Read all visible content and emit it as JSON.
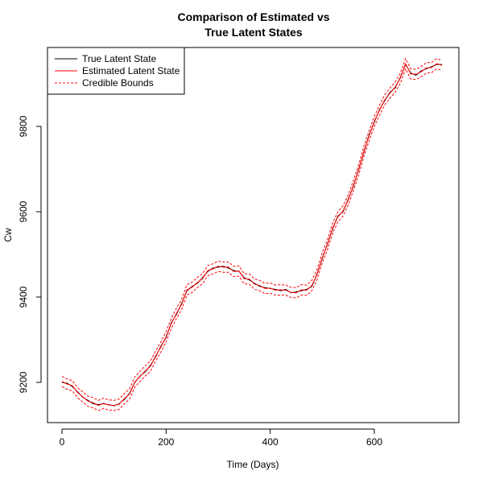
{
  "chart_data": {
    "type": "line",
    "title": [
      "Comparison of Estimated vs",
      "True Latent States"
    ],
    "xlabel": "Time (Days)",
    "ylabel": "Cw",
    "xlim": [
      0,
      730
    ],
    "ylim": [
      9120,
      9970
    ],
    "x_ticks": [
      0,
      200,
      400,
      600
    ],
    "y_ticks": [
      9200,
      9400,
      9600,
      9800
    ],
    "grid": false,
    "legend_position": "top-left",
    "bound_offset": 12,
    "series": [
      {
        "name": "True Latent State",
        "color": "#000000",
        "style": "solid",
        "x": [
          0,
          10,
          20,
          30,
          40,
          50,
          60,
          70,
          80,
          90,
          100,
          110,
          120,
          130,
          140,
          150,
          160,
          170,
          180,
          190,
          200,
          210,
          220,
          230,
          240,
          250,
          260,
          270,
          280,
          290,
          300,
          310,
          320,
          330,
          340,
          350,
          360,
          370,
          380,
          390,
          400,
          410,
          420,
          430,
          440,
          450,
          460,
          470,
          480,
          490,
          500,
          510,
          520,
          530,
          540,
          550,
          560,
          570,
          580,
          590,
          600,
          610,
          620,
          630,
          640,
          650,
          660,
          670,
          680,
          690,
          700,
          710,
          720,
          730
        ],
        "values": [
          9200,
          9198,
          9190,
          9178,
          9165,
          9158,
          9150,
          9148,
          9150,
          9148,
          9145,
          9150,
          9160,
          9175,
          9200,
          9215,
          9225,
          9240,
          9260,
          9285,
          9305,
          9340,
          9360,
          9385,
          9415,
          9425,
          9432,
          9445,
          9460,
          9468,
          9470,
          9472,
          9468,
          9462,
          9460,
          9445,
          9440,
          9432,
          9425,
          9422,
          9420,
          9418,
          9415,
          9418,
          9410,
          9412,
          9415,
          9418,
          9425,
          9455,
          9490,
          9525,
          9560,
          9590,
          9600,
          9630,
          9660,
          9700,
          9740,
          9780,
          9810,
          9840,
          9860,
          9880,
          9890,
          9915,
          9945,
          9925,
          9920,
          9930,
          9935,
          9940,
          9945,
          9945
        ]
      },
      {
        "name": "Estimated Latent State",
        "color": "#ff0000",
        "style": "solid",
        "x": [
          0,
          10,
          20,
          30,
          40,
          50,
          60,
          70,
          80,
          90,
          100,
          110,
          120,
          130,
          140,
          150,
          160,
          170,
          180,
          190,
          200,
          210,
          220,
          230,
          240,
          250,
          260,
          270,
          280,
          290,
          300,
          310,
          320,
          330,
          340,
          350,
          360,
          370,
          380,
          390,
          400,
          410,
          420,
          430,
          440,
          450,
          460,
          470,
          480,
          490,
          500,
          510,
          520,
          530,
          540,
          550,
          560,
          570,
          580,
          590,
          600,
          610,
          620,
          630,
          640,
          650,
          660,
          670,
          680,
          690,
          700,
          710,
          720,
          730
        ],
        "values": [
          9202,
          9196,
          9192,
          9176,
          9166,
          9156,
          9152,
          9146,
          9151,
          9147,
          9146,
          9149,
          9162,
          9173,
          9201,
          9214,
          9227,
          9238,
          9262,
          9283,
          9307,
          9338,
          9362,
          9383,
          9417,
          9423,
          9434,
          9443,
          9462,
          9466,
          9472,
          9470,
          9470,
          9460,
          9461,
          9443,
          9442,
          9430,
          9427,
          9420,
          9421,
          9416,
          9417,
          9416,
          9411,
          9410,
          9417,
          9416,
          9427,
          9453,
          9492,
          9523,
          9562,
          9588,
          9602,
          9628,
          9662,
          9698,
          9742,
          9778,
          9812,
          9838,
          9862,
          9878,
          9892,
          9913,
          9947,
          9923,
          9922,
          9928,
          9937,
          9938,
          9947,
          9943
        ]
      },
      {
        "name": "Credible Bounds",
        "color": "#ff0000",
        "style": "dashed"
      }
    ]
  }
}
